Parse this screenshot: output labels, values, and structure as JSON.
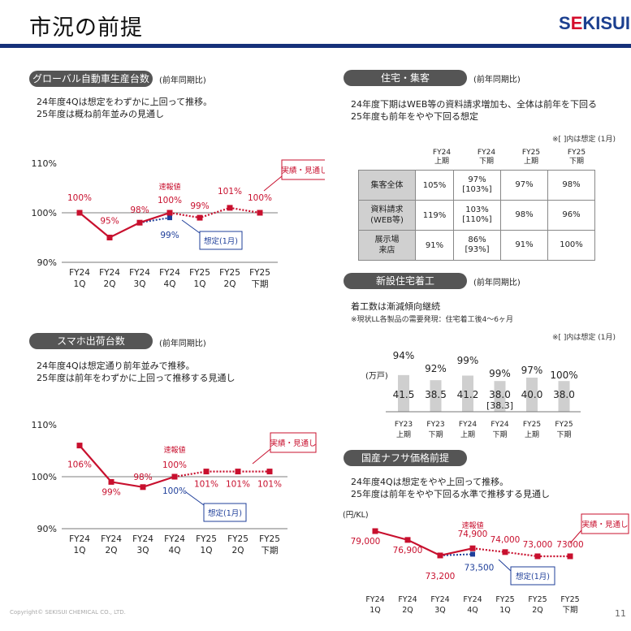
{
  "page": {
    "title": "市況の前提",
    "logo": [
      "S",
      "E",
      "KISUI"
    ],
    "copyright": "Copyright© SEKISUI CHEMICAL CO., LTD.",
    "page_number": "11"
  },
  "auto": {
    "pill": "グローバル自動車生産台数",
    "note": "(前年同期比)",
    "line1": "24年度4Qは想定をわずかに上回って推移。",
    "line2": "25年度は概ね前年並みの見通し",
    "legend_actual": "実績・見通し",
    "legend_plan": "想定(1月)",
    "prelim": "速報値",
    "chart_data": {
      "type": "line",
      "categories": [
        "FY24\n1Q",
        "FY24\n2Q",
        "FY24\n3Q",
        "FY24\n4Q",
        "FY25\n1Q",
        "FY25\n2Q",
        "FY25\n下期"
      ],
      "yticks": [
        "110%",
        "100%",
        "90%"
      ],
      "ylim": [
        90,
        110
      ],
      "series": [
        {
          "name": "実績・見通し",
          "values": [
            100,
            95,
            98,
            100,
            99,
            101,
            100
          ],
          "labels": [
            "100%",
            "95%",
            "98%",
            "100%",
            "99%",
            "101%",
            "100%"
          ]
        },
        {
          "name": "想定(1月)",
          "values": [
            null,
            null,
            98,
            99,
            null,
            null,
            null
          ],
          "labels": [
            "",
            "",
            "",
            "99%",
            "",
            "",
            ""
          ]
        }
      ]
    }
  },
  "phone": {
    "pill": "スマホ出荷台数",
    "note": "(前年同期比)",
    "line1": "24年度4Qは想定通り前年並みで推移。",
    "line2": "25年度は前年をわずかに上回って推移する見通し",
    "legend_actual": "実績・見通し",
    "legend_plan": "想定(1月)",
    "prelim": "速報値",
    "chart_data": {
      "type": "line",
      "categories": [
        "FY24\n1Q",
        "FY24\n2Q",
        "FY24\n3Q",
        "FY24\n4Q",
        "FY25\n1Q",
        "FY25\n2Q",
        "FY25\n下期"
      ],
      "yticks": [
        "110%",
        "100%",
        "90%"
      ],
      "ylim": [
        90,
        110
      ],
      "series": [
        {
          "name": "実績・見通し",
          "values": [
            106,
            99,
            98,
            100,
            101,
            101,
            101
          ],
          "labels": [
            "106%",
            "99%",
            "98%",
            "100%",
            "101%",
            "101%",
            "101%"
          ]
        },
        {
          "name": "想定(1月)",
          "values": [
            null,
            null,
            null,
            100,
            null,
            null,
            null
          ],
          "labels": [
            "",
            "",
            "",
            "100%",
            "",
            "",
            ""
          ]
        }
      ]
    }
  },
  "housing": {
    "pill": "住宅・集客",
    "note": "(前年同期比)",
    "line1": "24年度下期はWEB等の資料請求増加も、全体は前年を下回る",
    "line2": "25年度も前年をやや下回る想定",
    "bracket_note": "※[ ]内は想定 (1月)",
    "headers": [
      [
        "FY24",
        "上期"
      ],
      [
        "FY24",
        "下期"
      ],
      [
        "FY25",
        "上期"
      ],
      [
        "FY25",
        "下期"
      ]
    ],
    "rows": [
      {
        "label": [
          "集客全体"
        ],
        "cells": [
          [
            "105%"
          ],
          [
            "97%",
            "[103%]"
          ],
          [
            "97%"
          ],
          [
            "98%"
          ]
        ]
      },
      {
        "label": [
          "資料請求",
          "(WEB等)"
        ],
        "cells": [
          [
            "119%"
          ],
          [
            "103%",
            "[110%]"
          ],
          [
            "98%"
          ],
          [
            "96%"
          ]
        ]
      },
      {
        "label": [
          "展示場",
          "来店"
        ],
        "cells": [
          [
            "91%"
          ],
          [
            "86%",
            "[93%]"
          ],
          [
            "91%"
          ],
          [
            "100%"
          ]
        ]
      }
    ]
  },
  "starts": {
    "pill": "新設住宅着工",
    "note": "(前年同期比)",
    "line1": "着工数は漸減傾向継続",
    "line2": "※現状LL各製品の需要発現：住宅着工後4～6ヶ月",
    "bracket_note": "※[ ]内は想定 (1月)",
    "unit": "(万戸)",
    "chart_data": {
      "type": "bar",
      "categories": [
        [
          "FY23",
          "上期"
        ],
        [
          "FY23",
          "下期"
        ],
        [
          "FY24",
          "上期"
        ],
        [
          "FY24",
          "下期"
        ],
        [
          "FY25",
          "上期"
        ],
        [
          "FY25",
          "下期"
        ]
      ],
      "values": [
        41.5,
        38.5,
        41.2,
        38.0,
        40.0,
        38.0
      ],
      "value_labels": [
        "41.5",
        "38.5",
        "41.2",
        "38.0",
        "40.0",
        "38.0"
      ],
      "sub_labels": [
        "",
        "",
        "",
        "[38.3]",
        "",
        ""
      ],
      "pct_labels": [
        "94%",
        "92%",
        "99%",
        "99%",
        "97%",
        "100%"
      ]
    }
  },
  "naphtha": {
    "pill": "国産ナフサ価格前提",
    "line1": "24年度4Qは想定をやや上回って推移。",
    "line2": "25年度は前年をやや下回る水準で推移する見通し",
    "unit": "(円/KL)",
    "legend_actual": "実績・見通し",
    "legend_plan": "想定(1月)",
    "prelim": "速報値",
    "chart_data": {
      "type": "line",
      "categories": [
        "FY24\n1Q",
        "FY24\n2Q",
        "FY24\n3Q",
        "FY24\n4Q",
        "FY25\n1Q",
        "FY25\n2Q",
        "FY25\n下期"
      ],
      "series": [
        {
          "name": "実績・見通し",
          "values": [
            79000,
            76900,
            73200,
            74900,
            74000,
            73000,
            73000
          ],
          "labels": [
            "79,000",
            "76,900",
            "73,200",
            "74,900",
            "74,000",
            "73,000",
            "73000"
          ]
        },
        {
          "name": "想定(1月)",
          "values": [
            null,
            null,
            73200,
            73500,
            null,
            null,
            null
          ],
          "labels": [
            "",
            "",
            "",
            "73,500",
            "",
            "",
            ""
          ]
        }
      ]
    }
  },
  "colors": {
    "actual": "#c8102e",
    "plan": "#1f3f9a",
    "bar": "#cfcfcf",
    "pill": "#555555"
  }
}
